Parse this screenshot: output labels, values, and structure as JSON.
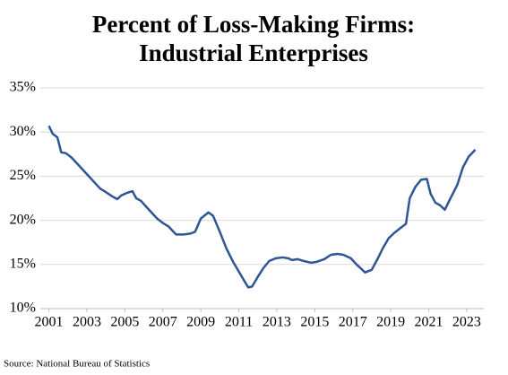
{
  "chart_data": {
    "type": "line",
    "title": [
      "Percent of Loss-Making Firms:",
      "Industrial Enterprises"
    ],
    "source": "Source: National Bureau of Statistics",
    "x": [
      2001,
      2001.2,
      2001.45,
      2001.65,
      2001.9,
      2002.2,
      2002.5,
      2002.8,
      2003.1,
      2003.4,
      2003.7,
      2004.0,
      2004.35,
      2004.6,
      2004.8,
      2005.1,
      2005.4,
      2005.6,
      2005.85,
      2006.1,
      2006.4,
      2006.7,
      2007.0,
      2007.3,
      2007.7,
      2008.1,
      2008.45,
      2008.7,
      2009.0,
      2009.4,
      2009.65,
      2010.0,
      2010.35,
      2010.7,
      2011.0,
      2011.3,
      2011.5,
      2011.7,
      2012.0,
      2012.3,
      2012.6,
      2012.95,
      2013.3,
      2013.6,
      2013.8,
      2014.1,
      2014.4,
      2014.8,
      2015.1,
      2015.5,
      2015.85,
      2016.2,
      2016.5,
      2016.9,
      2017.2,
      2017.45,
      2017.65,
      2018.0,
      2018.3,
      2018.6,
      2018.9,
      2019.2,
      2019.55,
      2019.8,
      2020.0,
      2020.3,
      2020.6,
      2020.9,
      2021.1,
      2021.35,
      2021.6,
      2021.85,
      2022.1,
      2022.5,
      2022.8,
      2023.1,
      2023.45
    ],
    "series": [
      {
        "name": "Loss-making firms",
        "color": "#2f5597",
        "values": [
          30.7,
          29.8,
          29.4,
          27.7,
          27.6,
          27.1,
          26.4,
          25.7,
          25.0,
          24.3,
          23.6,
          23.2,
          22.7,
          22.4,
          22.8,
          23.1,
          23.3,
          22.5,
          22.2,
          21.6,
          20.9,
          20.2,
          19.7,
          19.3,
          18.4,
          18.4,
          18.5,
          18.7,
          20.2,
          20.9,
          20.5,
          18.7,
          16.8,
          15.3,
          14.2,
          13.1,
          12.4,
          12.5,
          13.6,
          14.6,
          15.4,
          15.7,
          15.8,
          15.7,
          15.5,
          15.6,
          15.4,
          15.2,
          15.3,
          15.6,
          16.1,
          16.2,
          16.1,
          15.7,
          15.0,
          14.5,
          14.1,
          14.4,
          15.6,
          16.9,
          18.0,
          18.6,
          19.2,
          19.6,
          22.5,
          23.8,
          24.6,
          24.7,
          23.0,
          22.0,
          21.7,
          21.2,
          22.3,
          24.0,
          26.0,
          27.2,
          28.0
        ]
      }
    ],
    "xlim": [
      2000.55,
      2023.9
    ],
    "xticks": [
      2001,
      2003,
      2005,
      2007,
      2009,
      2011,
      2013,
      2015,
      2017,
      2019,
      2021,
      2023
    ],
    "ylim": [
      10,
      35
    ],
    "yticks": [
      {
        "value": 10,
        "label": "10%"
      },
      {
        "value": 15,
        "label": "15%"
      },
      {
        "value": 20,
        "label": "20%"
      },
      {
        "value": 25,
        "label": "25%"
      },
      {
        "value": 30,
        "label": "30%"
      },
      {
        "value": 35,
        "label": "35%"
      }
    ],
    "grid": true
  }
}
